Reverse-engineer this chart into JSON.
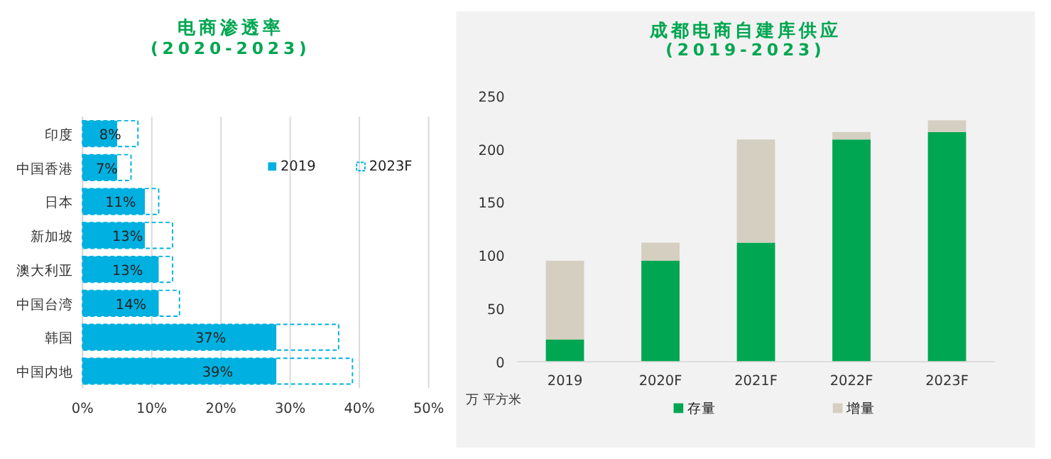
{
  "chart_data": [
    {
      "type": "bar",
      "orientation": "horizontal",
      "title": "电商渗透率",
      "subtitle": "(2020-2023)",
      "categories": [
        "印度",
        "中国香港",
        "日本",
        "新加坡",
        "澳大利亚",
        "中国台湾",
        "韩国",
        "中国内地"
      ],
      "series": [
        {
          "name": "2019",
          "color": "#00b0e0",
          "values": [
            5,
            5,
            9,
            9,
            11,
            11,
            28,
            28
          ]
        },
        {
          "name": "2023F",
          "color": "#00b0e0",
          "line_style": "dashed",
          "values": [
            8,
            7,
            11,
            13,
            13,
            14,
            37,
            39
          ],
          "value_labels": [
            "8%",
            "7%",
            "11%",
            "13%",
            "13%",
            "14%",
            "37%",
            "39%"
          ]
        }
      ],
      "xlim": [
        0,
        50
      ],
      "xticks": [
        {
          "value": 0,
          "label": "0%"
        },
        {
          "value": 10,
          "label": "10%"
        },
        {
          "value": 20,
          "label": "20%"
        },
        {
          "value": 30,
          "label": "30%"
        },
        {
          "value": 40,
          "label": "40%"
        },
        {
          "value": 50,
          "label": "50%"
        }
      ],
      "grid": "x",
      "legend": "top right"
    },
    {
      "type": "bar",
      "stacked": true,
      "title": "成都电商自建库供应",
      "subtitle": "(2019-2023)",
      "ylabel": "万 平方米",
      "categories": [
        "2019",
        "2020F",
        "2021F",
        "2022F",
        "2023F"
      ],
      "series": [
        {
          "name": "存量",
          "color": "#00a651",
          "values": [
            21,
            95,
            112,
            209,
            216
          ]
        },
        {
          "name": "增量",
          "color": "#d4cfc0",
          "values": [
            74,
            17,
            97,
            7,
            11
          ]
        }
      ],
      "ylim": [
        0,
        250
      ],
      "yticks": [
        0,
        50,
        100,
        150,
        200,
        250
      ],
      "grid": false,
      "legend": "bottom"
    }
  ]
}
